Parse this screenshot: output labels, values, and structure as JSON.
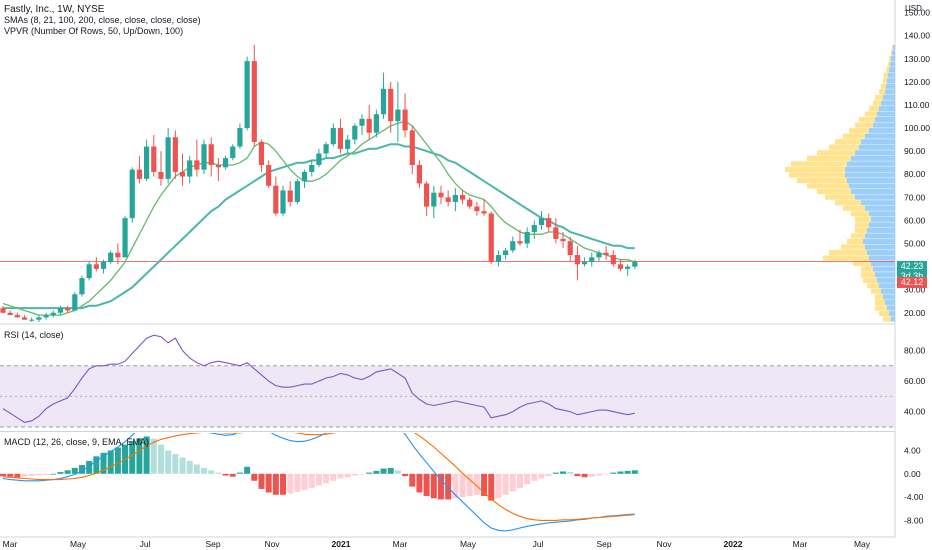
{
  "header": {
    "title": "Fastly, Inc., 1W, NYSE",
    "sma_label": "SMAs (8, 21, 100, 200, close, close, close, close)",
    "vpvr_label": "VPVR (Number Of Rows, 50, Up/Down, 100)",
    "currency": "USD"
  },
  "panes": {
    "rsi_label": "RSI (14, close)",
    "macd_label": "MACD (12, 26, close, 9, EMA, EMA)"
  },
  "price_badges": {
    "current": "42.23",
    "countdown": "3d 3h",
    "sma": "42.12"
  },
  "colors": {
    "up": "#26a69a",
    "down": "#ef5350",
    "sma_short": "#66bb6a",
    "sma_long": "#4db6ac",
    "rsi_line": "#7e57c2",
    "rsi_band": "#ede7f6",
    "macd_line": "#2196f3",
    "signal_line": "#ff6d00",
    "hline": "#ef5350",
    "vp_up": "#90caf9",
    "vp_down": "#ffe082"
  },
  "chart_data": [
    {
      "type": "candlestick",
      "title": "Fastly, Inc., 1W, NYSE",
      "x_ticks": [
        "Mar",
        "May",
        "Jul",
        "Sep",
        "Nov",
        "2021",
        "Mar",
        "May",
        "Jul",
        "Sep",
        "Nov",
        "2022",
        "Mar",
        "May"
      ],
      "y_ticks": [
        "20.00",
        "30.00",
        "40.00",
        "50.00",
        "60.00",
        "70.00",
        "80.00",
        "90.00",
        "100.00",
        "110.00",
        "120.00",
        "130.00",
        "140.00",
        "150.00"
      ],
      "ylim": [
        16,
        152
      ],
      "horizontal_line": 42.23,
      "candles_ohlc": [
        [
          22,
          23,
          20,
          20
        ],
        [
          20,
          21,
          19,
          19
        ],
        [
          19,
          20,
          18,
          18
        ],
        [
          18,
          19,
          17,
          17
        ],
        [
          17,
          18,
          16,
          17
        ],
        [
          17,
          19,
          16,
          18
        ],
        [
          18,
          20,
          17,
          19
        ],
        [
          19,
          21,
          18,
          20
        ],
        [
          20,
          23,
          19,
          22
        ],
        [
          22,
          23,
          20,
          21
        ],
        [
          21,
          29,
          21,
          28
        ],
        [
          28,
          36,
          27,
          35
        ],
        [
          35,
          42,
          34,
          41
        ],
        [
          41,
          44,
          38,
          39
        ],
        [
          39,
          43,
          37,
          42
        ],
        [
          42,
          47,
          41,
          46
        ],
        [
          46,
          50,
          41,
          44
        ],
        [
          44,
          62,
          44,
          61
        ],
        [
          61,
          83,
          59,
          82
        ],
        [
          82,
          88,
          76,
          78
        ],
        [
          78,
          95,
          77,
          92
        ],
        [
          92,
          97,
          79,
          81
        ],
        [
          81,
          90,
          75,
          78
        ],
        [
          78,
          100,
          76,
          96
        ],
        [
          96,
          99,
          78,
          81
        ],
        [
          81,
          89,
          75,
          79
        ],
        [
          79,
          88,
          76,
          86
        ],
        [
          86,
          95,
          79,
          82
        ],
        [
          82,
          95,
          80,
          93
        ],
        [
          93,
          96,
          79,
          84
        ],
        [
          84,
          87,
          77,
          83
        ],
        [
          83,
          88,
          82,
          87
        ],
        [
          87,
          93,
          86,
          92
        ],
        [
          92,
          102,
          91,
          100
        ],
        [
          100,
          131,
          99,
          129
        ],
        [
          129,
          136,
          92,
          94
        ],
        [
          94,
          95,
          81,
          84
        ],
        [
          84,
          86,
          74,
          75
        ],
        [
          75,
          79,
          62,
          63
        ],
        [
          63,
          75,
          62,
          73
        ],
        [
          73,
          77,
          66,
          68
        ],
        [
          68,
          78,
          67,
          77
        ],
        [
          77,
          82,
          74,
          81
        ],
        [
          81,
          86,
          79,
          84
        ],
        [
          84,
          91,
          83,
          89
        ],
        [
          89,
          94,
          87,
          93
        ],
        [
          93,
          102,
          92,
          100
        ],
        [
          100,
          104,
          89,
          91
        ],
        [
          91,
          97,
          89,
          95
        ],
        [
          95,
          102,
          93,
          101
        ],
        [
          101,
          106,
          97,
          104
        ],
        [
          104,
          110,
          95,
          98
        ],
        [
          98,
          108,
          96,
          106
        ],
        [
          106,
          124,
          104,
          117
        ],
        [
          117,
          120,
          98,
          103
        ],
        [
          103,
          120,
          94,
          108
        ],
        [
          108,
          115,
          96,
          99
        ],
        [
          99,
          101,
          80,
          84
        ],
        [
          84,
          86,
          74,
          76
        ],
        [
          76,
          77,
          62,
          66
        ],
        [
          66,
          75,
          61,
          72
        ],
        [
          72,
          75,
          67,
          70
        ],
        [
          70,
          73,
          66,
          68
        ],
        [
          68,
          74,
          64,
          71
        ],
        [
          71,
          73,
          67,
          69
        ],
        [
          69,
          70,
          65,
          66
        ],
        [
          66,
          68,
          62,
          64
        ],
        [
          64,
          69,
          62,
          63
        ],
        [
          63,
          64,
          41,
          42
        ],
        [
          42,
          47,
          40,
          45
        ],
        [
          45,
          48,
          43,
          47
        ],
        [
          47,
          53,
          46,
          51
        ],
        [
          51,
          56,
          49,
          50
        ],
        [
          50,
          57,
          48,
          55
        ],
        [
          55,
          60,
          52,
          58
        ],
        [
          58,
          64,
          56,
          61
        ],
        [
          61,
          63,
          55,
          57
        ],
        [
          57,
          61,
          50,
          52
        ],
        [
          52,
          55,
          48,
          51
        ],
        [
          51,
          53,
          42,
          45
        ],
        [
          45,
          49,
          34,
          41
        ],
        [
          41,
          44,
          40,
          42
        ],
        [
          42,
          46,
          40,
          44
        ],
        [
          44,
          47,
          42,
          46
        ],
        [
          46,
          49,
          43,
          45
        ],
        [
          45,
          47,
          40,
          41
        ],
        [
          41,
          43,
          38,
          39
        ],
        [
          39,
          41,
          36,
          40
        ],
        [
          40,
          43,
          39,
          42.23
        ]
      ],
      "sma_short": [
        24,
        23,
        22,
        21,
        20,
        19,
        19,
        19,
        19,
        20,
        21,
        23,
        25,
        28,
        31,
        34,
        38,
        42,
        48,
        54,
        60,
        66,
        71,
        75,
        79,
        81,
        83,
        84,
        85,
        85,
        84,
        84,
        84,
        85,
        87,
        92,
        94,
        93,
        90,
        86,
        82,
        79,
        77,
        77,
        78,
        80,
        83,
        86,
        88,
        90,
        93,
        95,
        97,
        99,
        101,
        102,
        103,
        101,
        97,
        93,
        89,
        85,
        80,
        76,
        73,
        71,
        70,
        69,
        66,
        62,
        59,
        57,
        55,
        54,
        54,
        54,
        55,
        55,
        54,
        52,
        50,
        48,
        47,
        46,
        45,
        44,
        43,
        43,
        42
      ],
      "sma_long": [
        22,
        22,
        22,
        22,
        22,
        22,
        22,
        22,
        22,
        22,
        22,
        22,
        23,
        23,
        24,
        25,
        27,
        29,
        31,
        34,
        37,
        40,
        43,
        46,
        49,
        52,
        55,
        58,
        61,
        64,
        66,
        69,
        71,
        73,
        75,
        77,
        79,
        81,
        82,
        83,
        84,
        85,
        85,
        86,
        86,
        87,
        87,
        88,
        89,
        89,
        90,
        91,
        91,
        92,
        93,
        93,
        92,
        92,
        91,
        90,
        89,
        88,
        86,
        85,
        83,
        81,
        79,
        77,
        75,
        73,
        71,
        69,
        67,
        65,
        63,
        61,
        60,
        58,
        57,
        55,
        54,
        53,
        52,
        51,
        50,
        49,
        49,
        48,
        48
      ]
    },
    {
      "type": "line",
      "title": "RSI (14, close)",
      "y_ticks": [
        "40.00",
        "60.00",
        "80.00"
      ],
      "ylim": [
        28,
        96
      ],
      "band": [
        30,
        70
      ],
      "midline": 50,
      "values": [
        42,
        39,
        36,
        33,
        34,
        37,
        42,
        45,
        47,
        49,
        55,
        62,
        68,
        70,
        70,
        71,
        71,
        73,
        78,
        83,
        88,
        90,
        89,
        85,
        88,
        80,
        75,
        72,
        70,
        72,
        73,
        72,
        71,
        70,
        72,
        68,
        64,
        60,
        57,
        56,
        56,
        57,
        58,
        58,
        60,
        62,
        63,
        65,
        64,
        62,
        61,
        63,
        66,
        67,
        68,
        65,
        62,
        52,
        48,
        45,
        44,
        45,
        46,
        47,
        46,
        45,
        44,
        43,
        36,
        37,
        38,
        40,
        43,
        45,
        46,
        47,
        45,
        42,
        41,
        40,
        38,
        39,
        40,
        41,
        41,
        40,
        39,
        38,
        39
      ]
    },
    {
      "type": "bar",
      "title": "MACD (12, 26, close, 9, EMA, EMA)",
      "y_ticks": [
        "4.00",
        "0.00",
        "-4.00",
        "-8.00"
      ],
      "ylim": [
        -10.5,
        7
      ],
      "histogram": [
        -0.4,
        -0.5,
        -0.6,
        -0.5,
        -0.4,
        -0.3,
        -0.2,
        0.0,
        0.3,
        0.6,
        1.0,
        1.5,
        2.2,
        3.0,
        3.6,
        4.0,
        4.5,
        5.0,
        5.6,
        6.1,
        6.4,
        6.0,
        5.0,
        4.0,
        3.4,
        2.8,
        2.2,
        1.6,
        1.0,
        0.6,
        0.2,
        -0.3,
        -0.5,
        0.2,
        1.2,
        -1.2,
        -2.6,
        -3.2,
        -3.6,
        -3.6,
        -3.4,
        -3.1,
        -2.8,
        -2.4,
        -2.0,
        -1.6,
        -1.2,
        -0.8,
        -0.6,
        -0.3,
        -0.1,
        0.2,
        0.5,
        0.9,
        1.0,
        0.6,
        -0.4,
        -2.2,
        -3.2,
        -3.8,
        -4.2,
        -4.4,
        -4.4,
        -4.2,
        -4.0,
        -3.8,
        -3.6,
        -3.8,
        -4.6,
        -4.2,
        -3.6,
        -3.0,
        -2.4,
        -1.8,
        -1.2,
        -0.8,
        -0.4,
        0.2,
        0.4,
        0.3,
        -0.4,
        -0.6,
        -0.5,
        -0.3,
        -0.1,
        0.2,
        0.4,
        0.5,
        0.6
      ],
      "macd_line": [
        -0.8,
        -1.0,
        -1.1,
        -1.2,
        -1.2,
        -1.2,
        -1.1,
        -1.0,
        -0.8,
        -0.5,
        -0.1,
        0.5,
        1.3,
        2.2,
        3.0,
        3.8,
        4.6,
        5.5,
        6.6,
        7.8,
        9.0,
        9.5,
        9.4,
        9.0,
        8.9,
        8.4,
        8.0,
        7.6,
        7.2,
        7.0,
        6.8,
        6.6,
        6.7,
        7.2,
        8.4,
        8.6,
        8.0,
        7.3,
        6.6,
        6.1,
        5.7,
        5.5,
        5.6,
        5.9,
        6.4,
        7.0,
        7.7,
        8.1,
        8.3,
        8.5,
        8.6,
        8.7,
        8.8,
        8.9,
        8.6,
        7.9,
        6.8,
        5.0,
        3.4,
        1.9,
        0.4,
        -1.0,
        -2.4,
        -3.6,
        -4.8,
        -6.0,
        -7.2,
        -8.4,
        -9.3,
        -9.7,
        -9.8,
        -9.6,
        -9.3,
        -9.0,
        -8.8,
        -8.6,
        -8.4,
        -8.3,
        -8.2,
        -8.1,
        -7.9,
        -7.8,
        -7.6,
        -7.5,
        -7.3,
        -7.2,
        -7.1,
        -7.0,
        -6.9
      ],
      "signal_line": [
        -0.5,
        -0.6,
        -0.7,
        -0.8,
        -0.9,
        -1.0,
        -1.0,
        -1.0,
        -1.0,
        -0.9,
        -0.8,
        -0.6,
        -0.3,
        0.1,
        0.6,
        1.2,
        1.8,
        2.5,
        3.2,
        4.0,
        4.8,
        5.4,
        5.9,
        6.2,
        6.5,
        6.7,
        6.9,
        7.0,
        7.1,
        7.1,
        7.1,
        7.0,
        7.0,
        7.0,
        7.2,
        7.5,
        7.6,
        7.7,
        7.6,
        7.4,
        7.2,
        7.0,
        6.8,
        6.7,
        6.7,
        6.8,
        7.0,
        7.2,
        7.4,
        7.6,
        7.8,
        7.9,
        8.0,
        8.1,
        8.2,
        8.1,
        7.8,
        7.3,
        6.5,
        5.6,
        4.6,
        3.5,
        2.4,
        1.3,
        0.1,
        -1.0,
        -2.1,
        -3.2,
        -4.3,
        -5.3,
        -6.1,
        -6.8,
        -7.3,
        -7.7,
        -7.9,
        -8.0,
        -8.0,
        -8.0,
        -7.9,
        -7.9,
        -7.8,
        -7.7,
        -7.6,
        -7.5,
        -7.4,
        -7.3,
        -7.2,
        -7.1,
        -7.0
      ]
    },
    {
      "type": "bar",
      "title": "VPVR (Number Of Rows, 50, Up/Down, 100)",
      "bins_low": 16,
      "bin_size": 2.4,
      "up_volume": [
        4,
        6,
        8,
        10,
        12,
        14,
        16,
        18,
        20,
        22,
        24,
        26,
        28,
        30,
        32,
        30,
        28,
        26,
        24,
        26,
        30,
        34,
        40,
        44,
        46,
        48,
        50,
        50,
        48,
        44,
        40,
        36,
        34,
        30,
        26,
        22,
        20,
        18,
        16,
        14,
        12,
        10,
        9,
        8,
        7,
        6,
        5,
        4,
        3,
        2
      ],
      "down_volume": [
        8,
        10,
        12,
        10,
        8,
        10,
        12,
        14,
        14,
        12,
        18,
        46,
        38,
        24,
        16,
        14,
        12,
        14,
        16,
        18,
        22,
        26,
        30,
        34,
        42,
        50,
        56,
        60,
        56,
        44,
        38,
        30,
        26,
        22,
        20,
        18,
        16,
        12,
        10,
        8,
        8,
        6,
        5,
        4,
        4,
        3,
        2,
        2,
        1,
        1
      ]
    }
  ]
}
